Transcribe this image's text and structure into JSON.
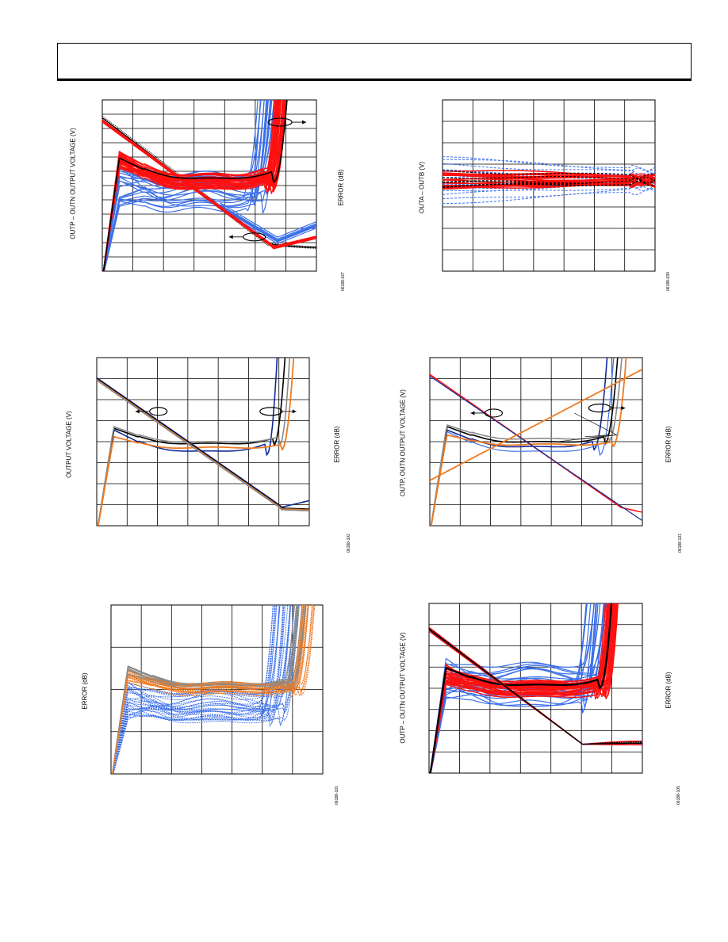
{
  "header": {},
  "colors": {
    "red": "#ff1010",
    "blue": "#3a6fe8",
    "navy": "#102a9a",
    "black": "#000000",
    "gray": "#8a8a8a",
    "orange": "#ee7a22"
  },
  "chart_data": [
    {
      "id": "top-left",
      "type": "line",
      "ylabel_left": "OUTP – OUTN OUTPUT VOLTAGE (V)",
      "ylabel_right": "ERROR (dB)",
      "figure_code": "06188-027",
      "grid": true,
      "grid_cols": 7,
      "grid_rows": 12,
      "annotations": [
        "two circled curve groups with arrows pointing to their axes"
      ],
      "series_shapes": [
        {
          "color": "red",
          "count": 40,
          "kind": "error-curve"
        },
        {
          "color": "blue",
          "count": 22,
          "kind": "error-curve"
        },
        {
          "color": "black",
          "count": 1,
          "kind": "error-curve"
        },
        {
          "color": "black",
          "count": 6,
          "kind": "voltage-curve"
        },
        {
          "color": "red",
          "count": 10,
          "kind": "voltage-curve"
        }
      ]
    },
    {
      "id": "top-right",
      "type": "line",
      "ylabel_left": "OUTA – OUTB (V)",
      "figure_code": "06188-030",
      "grid": true,
      "grid_cols": 7,
      "grid_rows": 8,
      "series_shapes": [
        {
          "color": "blue",
          "count": 14,
          "kind": "band"
        },
        {
          "color": "red",
          "count": 20,
          "kind": "band"
        },
        {
          "color": "black",
          "count": 6,
          "kind": "band"
        }
      ]
    },
    {
      "id": "middle-left",
      "type": "line",
      "ylabel_left": "OUTPUT VOLTAGE (V)",
      "ylabel_right": "ERROR (dB)",
      "figure_code": "06188-102",
      "grid": true,
      "grid_cols": 7,
      "grid_rows": 8,
      "annotations": [
        "two circled curve groups with arrows pointing to their axes"
      ],
      "series_shapes": [
        {
          "color": "navy",
          "count": 1
        },
        {
          "color": "black",
          "count": 1
        },
        {
          "color": "gray",
          "count": 1
        },
        {
          "color": "orange",
          "count": 1
        }
      ]
    },
    {
      "id": "middle-right",
      "type": "line",
      "ylabel_left": "OUTP, OUTN OUTPUT VOLTAGE (V)",
      "ylabel_right": "ERROR (dB)",
      "figure_code": "06188-131",
      "grid": true,
      "grid_cols": 7,
      "grid_rows": 8,
      "annotations": [
        "two circled curve groups with arrows pointing to their axes",
        "fan of three leader lines to curves"
      ],
      "series_shapes": [
        {
          "color": "navy",
          "count": 1
        },
        {
          "color": "blue",
          "count": 1
        },
        {
          "color": "black",
          "count": 1
        },
        {
          "color": "gray",
          "count": 1
        },
        {
          "color": "orange",
          "count": 2
        },
        {
          "color": "red",
          "count": 1
        }
      ]
    },
    {
      "id": "bottom-left",
      "type": "line",
      "ylabel_left": "ERROR (dB)",
      "figure_code": "06188-101",
      "grid": true,
      "grid_cols": 7,
      "grid_rows": 4,
      "series_shapes": [
        {
          "color": "blue",
          "count": 30
        },
        {
          "color": "gray",
          "count": 10
        },
        {
          "color": "orange",
          "count": 14
        }
      ]
    },
    {
      "id": "bottom-right",
      "type": "line",
      "ylabel_left": "OUTP – OUTN OUTPUT VOLTAGE (V)",
      "ylabel_right": "ERROR (dB)",
      "figure_code": "06188-105",
      "grid": true,
      "grid_cols": 7,
      "grid_rows": 8,
      "series_shapes": [
        {
          "color": "blue",
          "count": 20
        },
        {
          "color": "red",
          "count": 30
        },
        {
          "color": "black",
          "count": 1
        }
      ]
    }
  ]
}
